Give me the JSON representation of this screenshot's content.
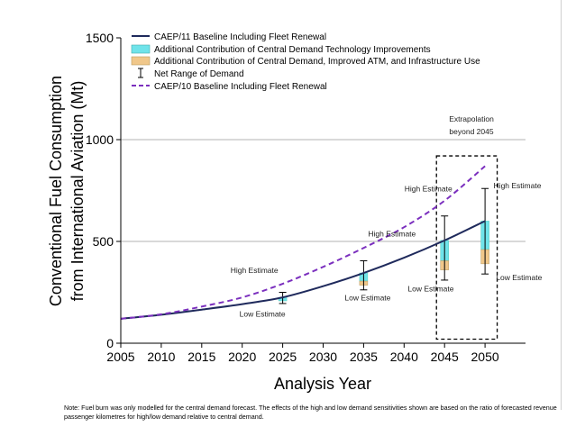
{
  "chart_data": {
    "type": "line",
    "title": "",
    "xlabel": "Analysis Year",
    "ylabel_line1": "Conventional Fuel Consumption",
    "ylabel_line2": "from International Aviation (Mt)",
    "xlim": [
      2005,
      2055
    ],
    "ylim": [
      0,
      1500
    ],
    "x_ticks": [
      2005,
      2010,
      2015,
      2020,
      2025,
      2030,
      2035,
      2040,
      2045,
      2050
    ],
    "y_ticks": [
      0,
      500,
      1000,
      1500
    ],
    "grid_y": [
      500,
      1000
    ],
    "legend_position": "top-left",
    "series": [
      {
        "name": "CAEP/11 Baseline Including Fleet Renewal",
        "style": "solid",
        "color": "#1f2a5c",
        "x": [
          2005,
          2010,
          2015,
          2020,
          2025,
          2030,
          2035,
          2040,
          2045,
          2050
        ],
        "y": [
          120,
          140,
          165,
          192,
          225,
          280,
          345,
          420,
          505,
          600
        ]
      },
      {
        "name": "CAEP/10 Baseline Including Fleet Renewal",
        "style": "dashed",
        "color": "#7b2fbe",
        "x": [
          2005,
          2010,
          2015,
          2020,
          2025,
          2030,
          2035,
          2040,
          2045,
          2050
        ],
        "y": [
          120,
          142,
          180,
          225,
          292,
          375,
          468,
          570,
          700,
          870
        ]
      }
    ],
    "bars": {
      "tech_legend": "Additional Contribution of Central Demand Technology Improvements",
      "atm_legend": "Additional Contribution of Central Demand, Improved ATM, and Infrastructure Use",
      "range_legend": "Net Range of Demand",
      "tech_color": "#6fe3ea",
      "atm_color": "#f0c78a",
      "items": [
        {
          "year": 2025,
          "top": 225,
          "tech_bottom": 208,
          "atm_bottom": 208,
          "range_high": 250,
          "range_low": 195
        },
        {
          "year": 2035,
          "top": 345,
          "tech_bottom": 305,
          "atm_bottom": 285,
          "range_high": 405,
          "range_low": 262
        },
        {
          "year": 2045,
          "top": 505,
          "tech_bottom": 405,
          "atm_bottom": 360,
          "range_high": 625,
          "range_low": 310
        },
        {
          "year": 2050,
          "top": 600,
          "tech_bottom": 460,
          "atm_bottom": 390,
          "range_high": 760,
          "range_low": 340
        }
      ]
    },
    "extrapolation": {
      "label_line1": "Extrapolation",
      "label_line2": "beyond 2045",
      "x_from": 2044,
      "x_to": 2051.5,
      "y_from": 20,
      "y_to": 920
    },
    "annotations": [
      {
        "text": "High Estimate",
        "x": 2021.5,
        "y": 345
      },
      {
        "text": "Low Estimate",
        "x": 2022.5,
        "y": 130
      },
      {
        "text": "High Estimate",
        "x": 2038.5,
        "y": 525
      },
      {
        "text": "Low Estimate",
        "x": 2035.5,
        "y": 210
      },
      {
        "text": "High Estimate",
        "x": 2043,
        "y": 745
      },
      {
        "text": "Low Estimate",
        "x": 2043.3,
        "y": 255
      },
      {
        "text": "High Estimate",
        "x": 2054,
        "y": 760
      },
      {
        "text": "Low Estimate",
        "x": 2054.2,
        "y": 310
      }
    ]
  },
  "note": "Note: Fuel burn was only modelled for the central demand forecast.  The effects of the high and low demand sensitivities shown are based on the ratio of forecasted revenue passenger kilometres for high/low demand relative to central demand."
}
